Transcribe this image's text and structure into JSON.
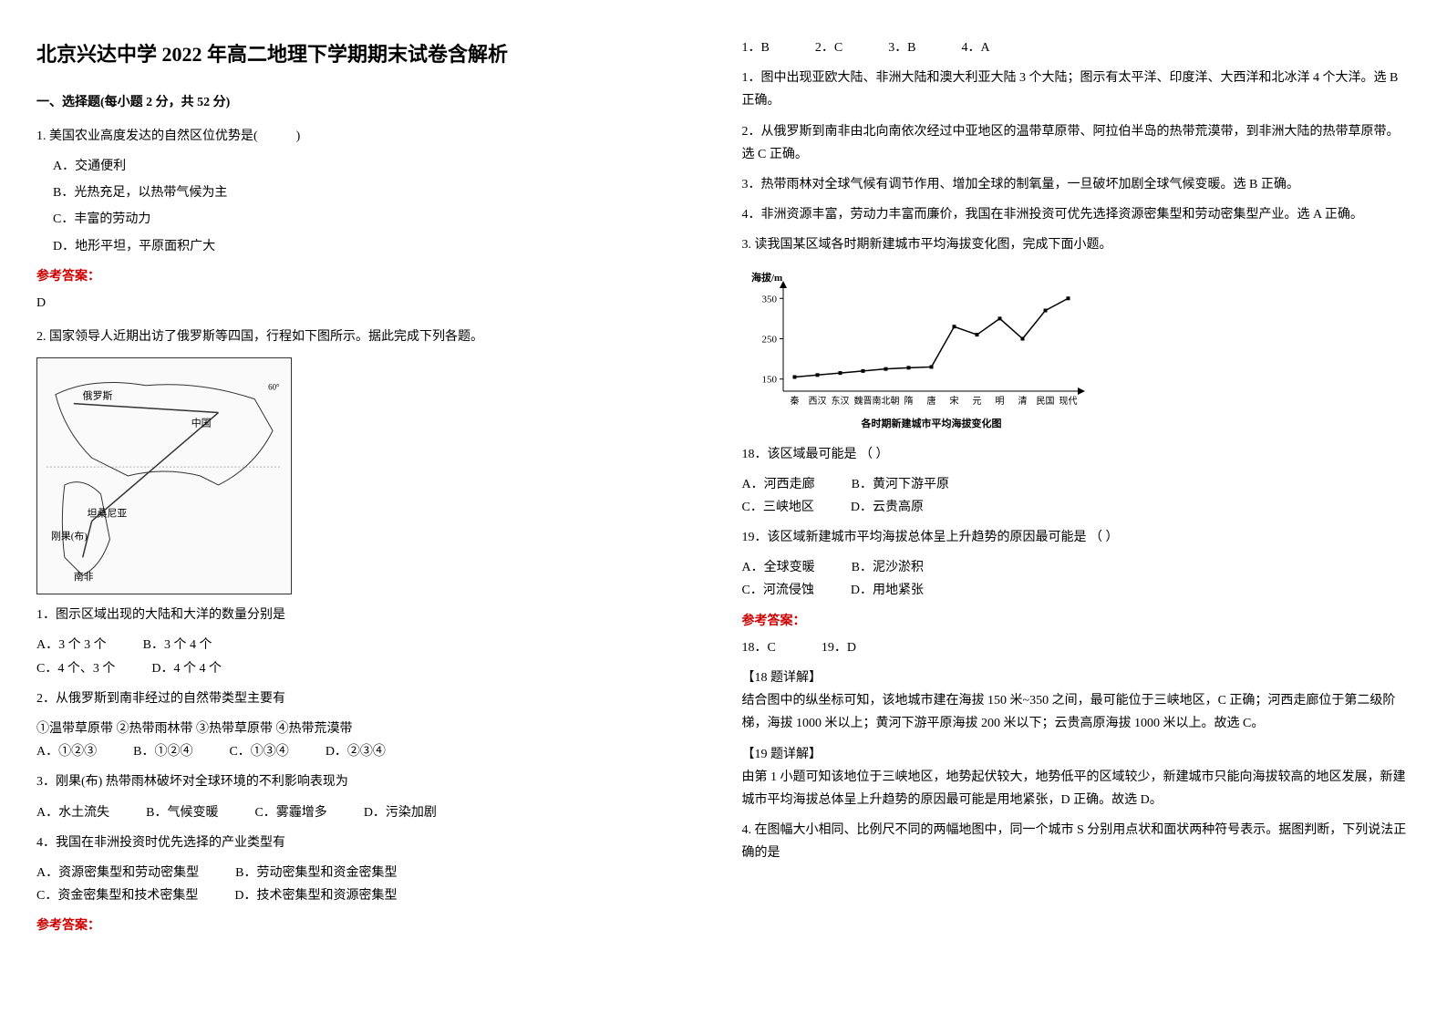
{
  "title": "北京兴达中学 2022 年高二地理下学期期末试卷含解析",
  "section1": {
    "header": "一、选择题(每小题 2 分，共 52 分)",
    "q1": {
      "stem": "1. 美国农业高度发达的自然区位优势是(　　　)",
      "optA": "A．交通便利",
      "optB": "B．光热充足，以热带气候为主",
      "optC": "C．丰富的劳动力",
      "optD": "D．地形平坦，平原面积广大",
      "answerLabel": "参考答案：",
      "answer": "D"
    },
    "q2": {
      "stem": "2. 国家领导人近期出访了俄罗斯等四国，行程如下图所示。据此完成下列各题。",
      "sub1": {
        "stem": "1．图示区域出现的大陆和大洋的数量分别是",
        "optA": "A．3 个 3 个",
        "optB": "B．3 个 4 个",
        "optC": "C．4 个、3 个",
        "optD": "D．4 个 4 个"
      },
      "sub2": {
        "stem": "2．从俄罗斯到南非经过的自然带类型主要有",
        "line2": "①温带草原带 ②热带雨林带 ③热带草原带 ④热带荒漠带",
        "optA": "A．①②③",
        "optB": "B．①②④",
        "optC": "C．①③④",
        "optD": "D．②③④"
      },
      "sub3": {
        "stem": "3．刚果(布) 热带雨林破坏对全球环境的不利影响表现为",
        "optA": "A．水土流失",
        "optB": "B．气候变暖",
        "optC": "C．雾霾增多",
        "optD": "D．污染加剧"
      },
      "sub4": {
        "stem": "4．我国在非洲投资时优先选择的产业类型有",
        "optA": "A．资源密集型和劳动密集型",
        "optB": "B．劳动密集型和资金密集型",
        "optC": "C．资金密集型和技术密集型",
        "optD": "D．技术密集型和资源密集型"
      },
      "answerLabel": "参考答案：",
      "answers": {
        "a1": "1．B",
        "a2": "2．C",
        "a3": "3．B",
        "a4": "4．A"
      },
      "explain1": "1．图中出现亚欧大陆、非洲大陆和澳大利亚大陆 3 个大陆；图示有太平洋、印度洋、大西洋和北冰洋 4 个大洋。选 B 正确。",
      "explain2": "2．从俄罗斯到南非由北向南依次经过中亚地区的温带草原带、阿拉伯半岛的热带荒漠带，到非洲大陆的热带草原带。选 C 正确。",
      "explain3": "3．热带雨林对全球气候有调节作用、增加全球的制氧量，一旦破坏加剧全球气候变暖。选 B 正确。",
      "explain4": "4．非洲资源丰富，劳动力丰富而廉价，我国在非洲投资可优先选择资源密集型和劳动密集型产业。选 A 正确。"
    },
    "q3": {
      "stem": "3. 读我国某区域各时期新建城市平均海拔变化图，完成下面小题。",
      "chart": {
        "title": "各时期新建城市平均海拔变化图",
        "ylabel": "海拔/m",
        "yticks": [
          150,
          250,
          350
        ],
        "categories": [
          "秦",
          "西汉",
          "东汉",
          "魏晋",
          "南北朝",
          "隋",
          "唐",
          "宋",
          "元",
          "明",
          "清",
          "民国",
          "现代"
        ],
        "values": [
          155,
          160,
          165,
          170,
          175,
          178,
          180,
          280,
          260,
          300,
          250,
          320,
          350
        ],
        "line_color": "#000000",
        "background": "#ffffff",
        "axis_color": "#000000",
        "fontsize": 11
      },
      "sub18": {
        "stem": "18．该区域最可能是 （  ）",
        "optA": "A．河西走廊",
        "optB": "B．黄河下游平原",
        "optC": "C．三峡地区",
        "optD": "D．云贵高原"
      },
      "sub19": {
        "stem": "19．该区域新建城市平均海拔总体呈上升趋势的原因最可能是 （  ）",
        "optA": "A．全球变暖",
        "optB": "B．泥沙淤积",
        "optC": "C．河流侵蚀",
        "optD": "D．用地紧张"
      },
      "answerLabel": "参考答案：",
      "answer18": "18．C",
      "answer19": "19．D",
      "explain18Label": "【18 题详解】",
      "explain18": "结合图中的纵坐标可知，该地城市建在海拔 150 米~350 之间，最可能位于三峡地区，C 正确；河西走廊位于第二级阶梯，海拔 1000 米以上；黄河下游平原海拔 200 米以下；云贵高原海拔 1000 米以上。故选 C。",
      "explain19Label": "【19 题详解】",
      "explain19": "由第 1 小题可知该地位于三峡地区，地势起伏较大，地势低平的区域较少，新建城市只能向海拔较高的地区发展，新建城市平均海拔总体呈上升趋势的原因最可能是用地紧张，D 正确。故选 D。"
    },
    "q4": {
      "stem": "4. 在图幅大小相同、比例尺不同的两幅地图中，同一个城市 S 分别用点状和面状两种符号表示。据图判断，下列说法正确的是"
    }
  },
  "map": {
    "labels": {
      "russia": "俄罗斯",
      "china": "中国",
      "tanzania": "坦桑尼亚",
      "congo": "刚果(布)",
      "southafrica": "南非"
    }
  }
}
